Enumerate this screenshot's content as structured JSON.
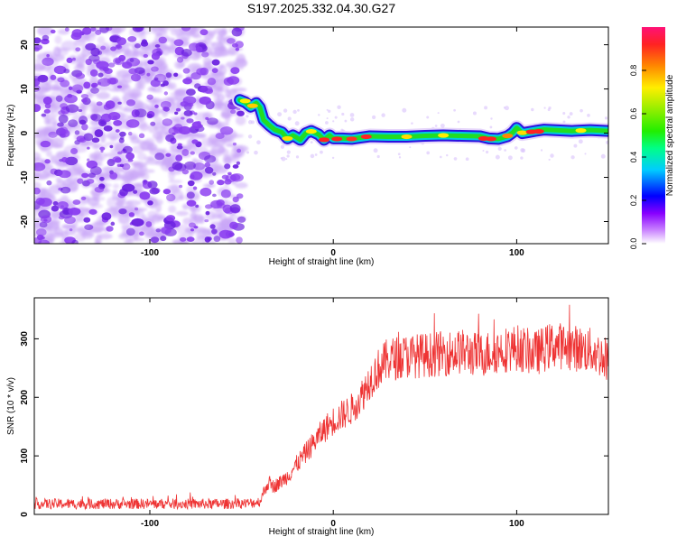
{
  "title": "S197.2025.332.04.30.G27",
  "colors": {
    "signal_line": "#ee3333",
    "noise_purple": "#8a3cf0",
    "axis": "#000000",
    "background": "#ffffff"
  },
  "chart_data": [
    {
      "type": "heatmap",
      "name": "spectrogram",
      "title": "S197.2025.332.04.30.G27",
      "xlabel": "Height of straight line (km)",
      "ylabel": "Frequency (Hz)",
      "xlim": [
        -163,
        150
      ],
      "ylim": [
        -25,
        24
      ],
      "xticks": [
        -100,
        0,
        100
      ],
      "xtick_labels": [
        "-100",
        "0",
        "100"
      ],
      "yticks": [
        20,
        10,
        0,
        -10,
        -20
      ],
      "ytick_labels": [
        "20",
        "10",
        "0",
        "-10",
        "-20"
      ],
      "noise_region": {
        "x_from": -163,
        "x_to": -50,
        "amplitude": "low (0.1-0.3)"
      },
      "signal_trace": {
        "x": [
          -51,
          -48,
          -45,
          -42,
          -40,
          -38,
          -35,
          -32,
          -28,
          -25,
          -22,
          -20,
          -18,
          -15,
          -12,
          -8,
          -5,
          -2,
          0,
          5,
          10,
          15,
          20,
          30,
          40,
          50,
          60,
          70,
          80,
          85,
          90,
          95,
          98,
          100,
          103,
          106,
          110,
          115,
          120,
          130,
          140,
          150
        ],
        "freq_hz": [
          7.5,
          7,
          6,
          6.8,
          5.8,
          3,
          1.8,
          0.8,
          0.2,
          -1.2,
          -0.5,
          -1,
          -1.5,
          0,
          0.5,
          -0.3,
          -1.5,
          -0.5,
          -1.2,
          -1.2,
          -1.3,
          -1,
          -0.7,
          -0.8,
          -0.8,
          -0.6,
          -0.5,
          -0.6,
          -0.7,
          -1.2,
          -1.3,
          -0.7,
          0.2,
          1.2,
          0,
          0.2,
          0.5,
          0.8,
          0.7,
          0.5,
          0.7,
          0.5
        ]
      },
      "colorbar": {
        "label": "Normalized spectral amplitude",
        "ticks": [
          0.0,
          0.2,
          0.4,
          0.6,
          0.8
        ],
        "tick_labels": [
          "0.0",
          "0.2",
          "0.4",
          "0.6",
          "0.8"
        ],
        "range": [
          0,
          1
        ]
      }
    },
    {
      "type": "line",
      "name": "snr",
      "xlabel": "Height of straight line (km)",
      "ylabel": "SNR (10 * v/v)",
      "xlim": [
        -163,
        150
      ],
      "ylim": [
        0,
        370
      ],
      "xticks": [
        -100,
        0,
        100
      ],
      "xtick_labels": [
        "-100",
        "0",
        "100"
      ],
      "yticks": [
        0,
        100,
        200,
        300
      ],
      "ytick_labels": [
        "0",
        "100",
        "200",
        "300"
      ],
      "series": [
        {
          "name": "SNR",
          "color": "#ee3333",
          "x": [
            -163,
            -140,
            -120,
            -100,
            -80,
            -60,
            -45,
            -40,
            -37,
            -35,
            -33,
            -30,
            -25,
            -20,
            -15,
            -10,
            -5,
            0,
            5,
            10,
            15,
            20,
            25,
            30,
            40,
            50,
            60,
            70,
            80,
            90,
            100,
            110,
            120,
            130,
            140,
            150
          ],
          "values": [
            18,
            18,
            18,
            18,
            18,
            18,
            19,
            22,
            45,
            55,
            48,
            52,
            65,
            85,
            105,
            125,
            145,
            160,
            170,
            180,
            200,
            230,
            250,
            265,
            270,
            272,
            275,
            278,
            272,
            280,
            285,
            275,
            290,
            285,
            280,
            265
          ]
        }
      ]
    }
  ]
}
